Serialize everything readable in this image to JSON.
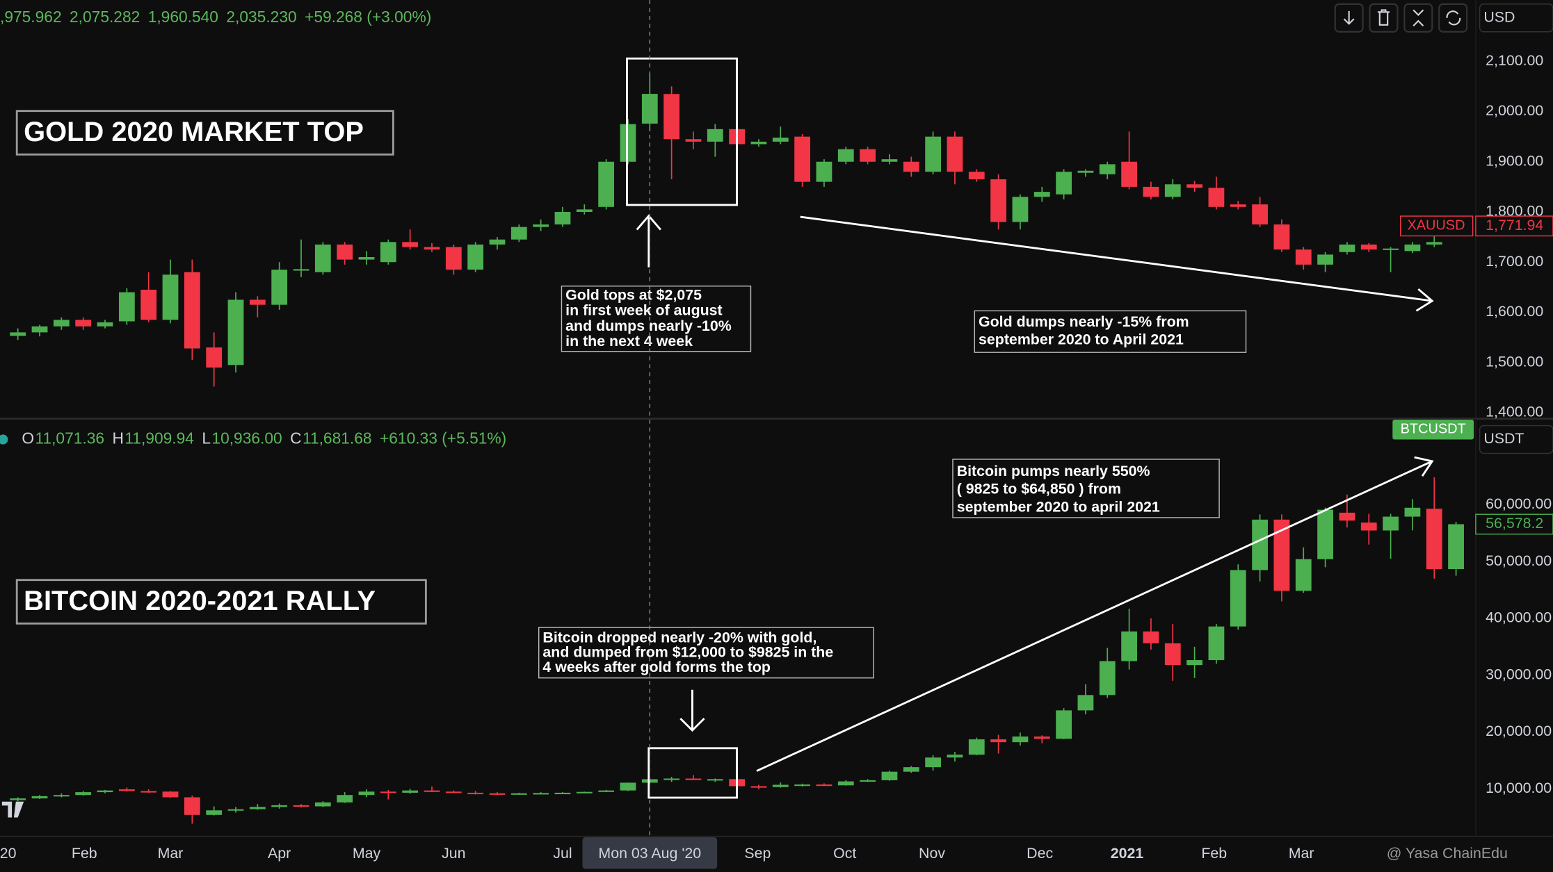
{
  "chart_data": [
    {
      "type": "candlestick",
      "title": "GOLD 2020 MARKET TOP",
      "legend": [
        {
          "value": ",975.962"
        },
        {
          "value": "2,075.282"
        },
        {
          "value": "1,960.540"
        },
        {
          "value": "2,035.230"
        }
      ],
      "change": "+59.268 (+3.00%)",
      "currency": "USD",
      "symbol": "XAUUSD",
      "last_price": {
        "value": 1771.94,
        "label": "1,771.94"
      },
      "annotations": [
        {
          "lines": [
            "Gold tops at $2,075",
            "in first week of august",
            "and dumps nearly -10%",
            "in the next 4 week"
          ]
        },
        {
          "lines": [
            "Gold dumps nearly -15% from",
            "september 2020 to April 2021"
          ]
        }
      ],
      "up_color": "#4caf50",
      "down_color": "#f23645",
      "xlim": [
        -0.82,
        70.45
      ],
      "ylim": [
        1390,
        2222
      ],
      "yticks": [
        {
          "value": 1400,
          "label": "1,400.00"
        },
        {
          "value": 1500,
          "label": "1,500.00"
        },
        {
          "value": 1600,
          "label": "1,600.00"
        },
        {
          "value": 1700,
          "label": "1,700.00"
        },
        {
          "value": 1800,
          "label": "1,800.00"
        },
        {
          "value": 1900,
          "label": "1,900.00"
        },
        {
          "value": 2000,
          "label": "2,000.00"
        },
        {
          "value": 2100,
          "label": "2,100.00"
        }
      ],
      "open": [
        1553,
        1560,
        1572,
        1585,
        1572,
        1582,
        1645,
        1585,
        1680,
        1530,
        1495,
        1625,
        1615,
        1683,
        1680,
        1735,
        1705,
        1700,
        1740,
        1730,
        1730,
        1685,
        1735,
        1745,
        1770,
        1775,
        1800,
        1810,
        1900,
        1975.962,
        2035,
        1945,
        1940,
        1965,
        1935,
        1940,
        1950,
        1860,
        1900,
        1925,
        1900,
        1900,
        1880,
        1950,
        1880,
        1865,
        1780,
        1830,
        1835,
        1878,
        1875,
        1900,
        1850,
        1830,
        1855,
        1848,
        1815,
        1815,
        1775,
        1725,
        1695,
        1720,
        1735,
        1725,
        1722,
        1735
      ],
      "high": [
        1568,
        1575,
        1590,
        1590,
        1585,
        1648,
        1680,
        1705,
        1705,
        1560,
        1640,
        1632,
        1700,
        1745,
        1740,
        1740,
        1722,
        1745,
        1765,
        1738,
        1735,
        1740,
        1750,
        1775,
        1785,
        1810,
        1815,
        1905,
        1985,
        2075.282,
        2050,
        1960,
        1975,
        1990,
        1945,
        1970,
        1955,
        1905,
        1930,
        1930,
        1915,
        1910,
        1960,
        1960,
        1885,
        1875,
        1835,
        1850,
        1885,
        1885,
        1900,
        1960,
        1860,
        1865,
        1862,
        1870,
        1822,
        1830,
        1785,
        1730,
        1720,
        1740,
        1738,
        1730,
        1740,
        1760
      ],
      "low": [
        1545,
        1552,
        1565,
        1565,
        1568,
        1575,
        1580,
        1578,
        1505,
        1452,
        1480,
        1590,
        1605,
        1670,
        1675,
        1695,
        1695,
        1695,
        1725,
        1720,
        1675,
        1680,
        1725,
        1740,
        1762,
        1770,
        1795,
        1805,
        1895,
        1960.54,
        1865,
        1925,
        1910,
        1930,
        1930,
        1935,
        1850,
        1850,
        1895,
        1895,
        1895,
        1870,
        1875,
        1855,
        1860,
        1765,
        1765,
        1820,
        1825,
        1870,
        1865,
        1845,
        1825,
        1825,
        1840,
        1805,
        1805,
        1770,
        1720,
        1685,
        1680,
        1715,
        1720,
        1680,
        1718,
        1730
      ],
      "close": [
        1560,
        1572,
        1585,
        1572,
        1580,
        1640,
        1585,
        1675,
        1528,
        1490,
        1625,
        1615,
        1685,
        1686,
        1735,
        1705,
        1710,
        1740,
        1730,
        1725,
        1685,
        1735,
        1745,
        1770,
        1775,
        1800,
        1805,
        1900,
        1975,
        2035.23,
        1945,
        1940,
        1965,
        1935,
        1940,
        1948,
        1860,
        1900,
        1925,
        1900,
        1905,
        1880,
        1950,
        1880,
        1865,
        1780,
        1830,
        1840,
        1880,
        1882,
        1895,
        1850,
        1830,
        1855,
        1848,
        1810,
        1810,
        1775,
        1725,
        1695,
        1715,
        1735,
        1725,
        1727,
        1735,
        1740
      ]
    },
    {
      "type": "candlestick",
      "title": "BITCOIN 2020-2021 RALLY",
      "legend": [
        {
          "key": "O",
          "value": "11,071.36"
        },
        {
          "key": "H",
          "value": "11,909.94"
        },
        {
          "key": "L",
          "value": "10,936.00"
        },
        {
          "key": "C",
          "value": "11,681.68"
        }
      ],
      "change": "+610.33 (+5.51%)",
      "currency": "USDT",
      "symbol": "BTCUSDT",
      "last_price": {
        "value": 56578.2,
        "label": "56,578.2"
      },
      "annotations": [
        {
          "lines": [
            "Bitcoin pumps nearly 550%",
            "( 9825 to $64,850 ) from",
            "september 2020 to april 2021"
          ]
        },
        {
          "lines": [
            "Bitcoin dropped nearly -20% with gold,",
            "and dumped from $12,000 to $9825 in the",
            "4 weeks after gold forms the top"
          ]
        }
      ],
      "up_color": "#4caf50",
      "down_color": "#f23645",
      "xlim": [
        -0.82,
        70.45
      ],
      "ylim": [
        1638,
        74808
      ],
      "yticks": [
        {
          "value": 10000,
          "label": "10,000.00"
        },
        {
          "value": 20000,
          "label": "20,000.00"
        },
        {
          "value": 30000,
          "label": "30,000.00"
        },
        {
          "value": 40000,
          "label": "40,000.00"
        },
        {
          "value": 50000,
          "label": "50,000.00"
        },
        {
          "value": 60000,
          "label": "60,000.00"
        }
      ],
      "xticks": [
        {
          "value": -0.45,
          "label": "20"
        },
        {
          "value": 3.05,
          "label": "Feb"
        },
        {
          "value": 7,
          "label": "Mar"
        },
        {
          "value": 12,
          "label": "Apr"
        },
        {
          "value": 16,
          "label": "May"
        },
        {
          "value": 20,
          "label": "Jun"
        },
        {
          "value": 25,
          "label": "Jul"
        },
        {
          "value": 33.95,
          "label": "Sep"
        },
        {
          "value": 37.95,
          "label": "Oct"
        },
        {
          "value": 41.95,
          "label": "Nov"
        },
        {
          "value": 46.9,
          "label": "Dec"
        },
        {
          "value": 50.9,
          "label": "2021"
        },
        {
          "value": 54.9,
          "label": "Feb"
        },
        {
          "value": 58.9,
          "label": "Mar"
        }
      ],
      "crosshair": {
        "value": 29,
        "label": "Mon 03 Aug '20"
      },
      "open": [
        8000,
        8300,
        8700,
        8900,
        9400,
        9900,
        9600,
        9500,
        8500,
        5400,
        6200,
        6400,
        6800,
        7100,
        6900,
        7600,
        8900,
        9500,
        9300,
        9700,
        9500,
        9300,
        9200,
        9100,
        9200,
        9250,
        9300,
        9450,
        9700,
        11071.36,
        11681,
        11800,
        11650,
        11700,
        10450,
        10300,
        10700,
        10750,
        10600,
        11300,
        11500,
        13000,
        13800,
        15500,
        16000,
        18700,
        18200,
        19200,
        18800,
        23800,
        26500,
        32476,
        37702,
        35612,
        31780,
        32650,
        38573,
        48503,
        57387,
        44845,
        50419,
        58606,
        56864,
        55471,
        57910,
        59303,
        48677
      ],
      "high": [
        8500,
        8900,
        9200,
        9600,
        9800,
        10200,
        9900,
        9600,
        8800,
        6900,
        6800,
        7300,
        7400,
        7300,
        7800,
        9400,
        9900,
        9800,
        10000,
        10400,
        9700,
        9600,
        9400,
        9300,
        9400,
        9400,
        9500,
        9800,
        11100,
        11909.94,
        12100,
        12400,
        11800,
        11800,
        10700,
        11100,
        10900,
        10950,
        11500,
        11700,
        13200,
        14000,
        15900,
        16500,
        19000,
        19500,
        19900,
        19400,
        24200,
        28400,
        34800,
        41709,
        40000,
        39000,
        35000,
        39000,
        49500,
        58300,
        58300,
        52500,
        59500,
        61800,
        58400,
        58400,
        61000,
        64850,
        57000
      ],
      "low": [
        7800,
        8200,
        8500,
        8800,
        9200,
        9500,
        9300,
        8400,
        3850,
        5300,
        5800,
        6300,
        6500,
        6700,
        6800,
        7500,
        8500,
        8100,
        9100,
        9400,
        9200,
        9000,
        8900,
        9000,
        9100,
        9100,
        9200,
        9400,
        9600,
        10936,
        11200,
        11600,
        11200,
        9825,
        9900,
        10200,
        10400,
        10500,
        10550,
        11200,
        11400,
        12800,
        13200,
        14800,
        15900,
        16200,
        17600,
        18000,
        18700,
        23100,
        26000,
        31000,
        34500,
        29000,
        29500,
        32000,
        38000,
        46500,
        43000,
        44500,
        49000,
        56000,
        53000,
        50500,
        55500,
        47000,
        47500
      ],
      "close": [
        8300,
        8700,
        8900,
        9400,
        9700,
        9600,
        9500,
        8500,
        5400,
        6200,
        6400,
        6800,
        7100,
        6900,
        7600,
        8900,
        9500,
        9300,
        9700,
        9500,
        9300,
        9200,
        9100,
        9200,
        9250,
        9300,
        9450,
        9700,
        11071.36,
        11681.68,
        11800,
        11650,
        11700,
        10450,
        10300,
        10700,
        10750,
        10600,
        11300,
        11500,
        13000,
        13800,
        15500,
        16000,
        18700,
        18200,
        19200,
        18800,
        23800,
        26500,
        32476,
        37702,
        35612,
        31780,
        32650,
        38573,
        48503,
        57387,
        44845,
        50419,
        59129,
        57213,
        55471,
        57910,
        59477,
        48677,
        56578.2
      ]
    }
  ],
  "watermark": "@ Yasa ChainEdu"
}
